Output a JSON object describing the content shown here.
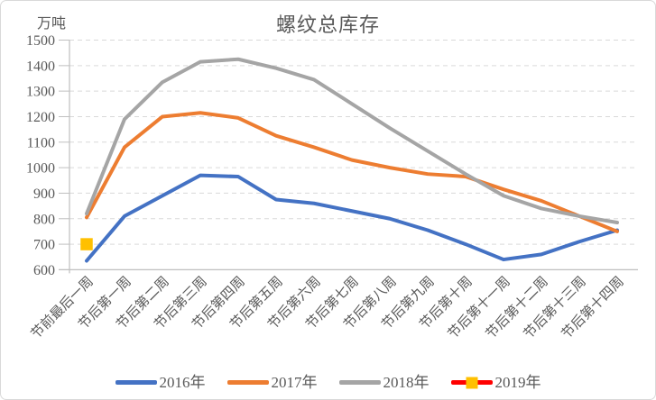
{
  "chart_data": {
    "type": "line",
    "title": "螺纹总库存",
    "unit_label": "万吨",
    "categories": [
      "节前最后一周",
      "节后第一周",
      "节后第二周",
      "节后第三周",
      "节后第四周",
      "节后第五周",
      "节后第六周",
      "节后第七周",
      "节后第八周",
      "节后第九周",
      "节后第十周",
      "节后第十一周",
      "节后第十二周",
      "节后第十三周",
      "节后第十四周"
    ],
    "series": [
      {
        "name": "2016年",
        "color": "#4472C4",
        "values": [
          635,
          810,
          890,
          970,
          965,
          875,
          860,
          830,
          800,
          755,
          700,
          640,
          660,
          710,
          755
        ]
      },
      {
        "name": "2017年",
        "color": "#ED7D31",
        "values": [
          805,
          1080,
          1200,
          1215,
          1195,
          1125,
          1080,
          1030,
          1000,
          975,
          965,
          915,
          870,
          810,
          750
        ]
      },
      {
        "name": "2018年",
        "color": "#A5A5A5",
        "values": [
          820,
          1190,
          1335,
          1415,
          1425,
          1390,
          1345,
          1250,
          1155,
          1065,
          975,
          890,
          840,
          810,
          785
        ]
      },
      {
        "name": "2019年",
        "color": "#FF0000",
        "marker_color": "#FFC000",
        "marker": "square",
        "values": [
          700,
          null,
          null,
          null,
          null,
          null,
          null,
          null,
          null,
          null,
          null,
          null,
          null,
          null,
          null
        ]
      }
    ],
    "ylim": [
      600,
      1500
    ],
    "ytick_step": 100,
    "grid": "horizontal-dashed",
    "legend_position": "bottom",
    "x_label_rotation_deg": 45
  },
  "style": {
    "gridline_color": "#D9D9D9",
    "axis_color": "#BFBFBF",
    "text_color": "#595959",
    "line_width": 4
  }
}
